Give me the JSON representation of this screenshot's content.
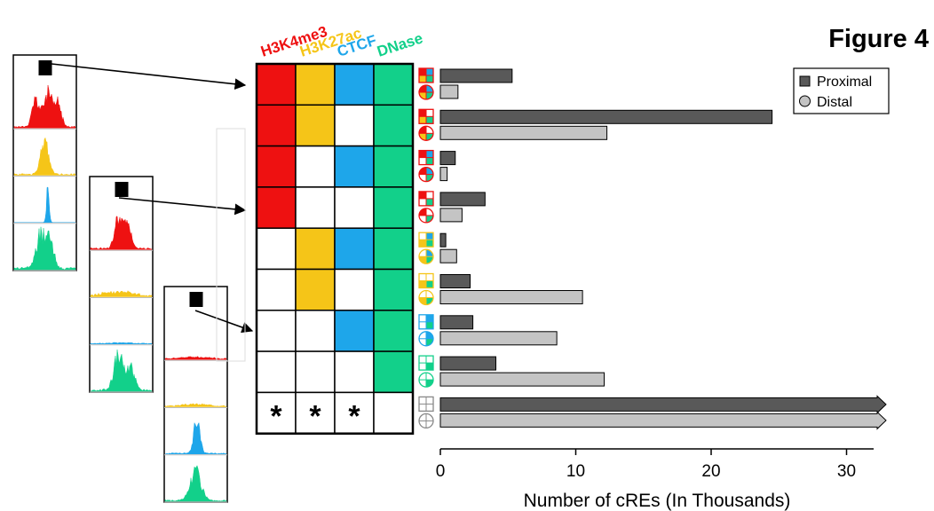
{
  "figure_label": "Figure 4",
  "colors": {
    "h3k4me3": "#ee1111",
    "h3k27ac": "#f5c518",
    "ctcf": "#1ea6ea",
    "dnase": "#12d08a",
    "proximal": "#595959",
    "distal": "#c4c4c4",
    "outline": "#000000"
  },
  "matrix": {
    "marks": [
      "H3K4me3",
      "H3K27ac",
      "CTCF",
      "DNase"
    ],
    "rows": [
      [
        1,
        1,
        1,
        1
      ],
      [
        1,
        1,
        0,
        1
      ],
      [
        1,
        0,
        1,
        1
      ],
      [
        1,
        0,
        0,
        1
      ],
      [
        0,
        1,
        1,
        1
      ],
      [
        0,
        1,
        0,
        1
      ],
      [
        0,
        0,
        1,
        1
      ],
      [
        0,
        0,
        0,
        1
      ],
      [
        0,
        0,
        0,
        0
      ]
    ],
    "last_row_symbols": [
      "*",
      "*",
      "*",
      ""
    ]
  },
  "legend": {
    "proximal": "Proximal",
    "distal": "Distal"
  },
  "chart_data": {
    "type": "bar",
    "orientation": "horizontal",
    "title": "",
    "xlabel": "Number of cREs (In Thousands)",
    "ylabel": "",
    "xlim": [
      0,
      32
    ],
    "xticks": [
      "0",
      "10",
      "20",
      "30"
    ],
    "xtick_values": [
      0,
      10,
      20,
      30
    ],
    "legend_position": "top-right",
    "categories": [
      "H3K4me3+H3K27ac+CTCF+DNase",
      "H3K4me3+H3K27ac+DNase",
      "H3K4me3+CTCF+DNase",
      "H3K4me3+DNase",
      "H3K27ac+CTCF+DNase",
      "H3K27ac+DNase",
      "CTCF+DNase",
      "DNase only",
      "none"
    ],
    "series": [
      {
        "name": "Proximal",
        "values": [
          5.3,
          24.5,
          1.1,
          3.3,
          0.4,
          2.2,
          2.4,
          4.1,
          33
        ]
      },
      {
        "name": "Distal",
        "values": [
          1.3,
          12.3,
          0.5,
          1.6,
          1.2,
          10.5,
          8.6,
          12.1,
          33
        ]
      }
    ],
    "overflow_arrow_row": 8
  }
}
